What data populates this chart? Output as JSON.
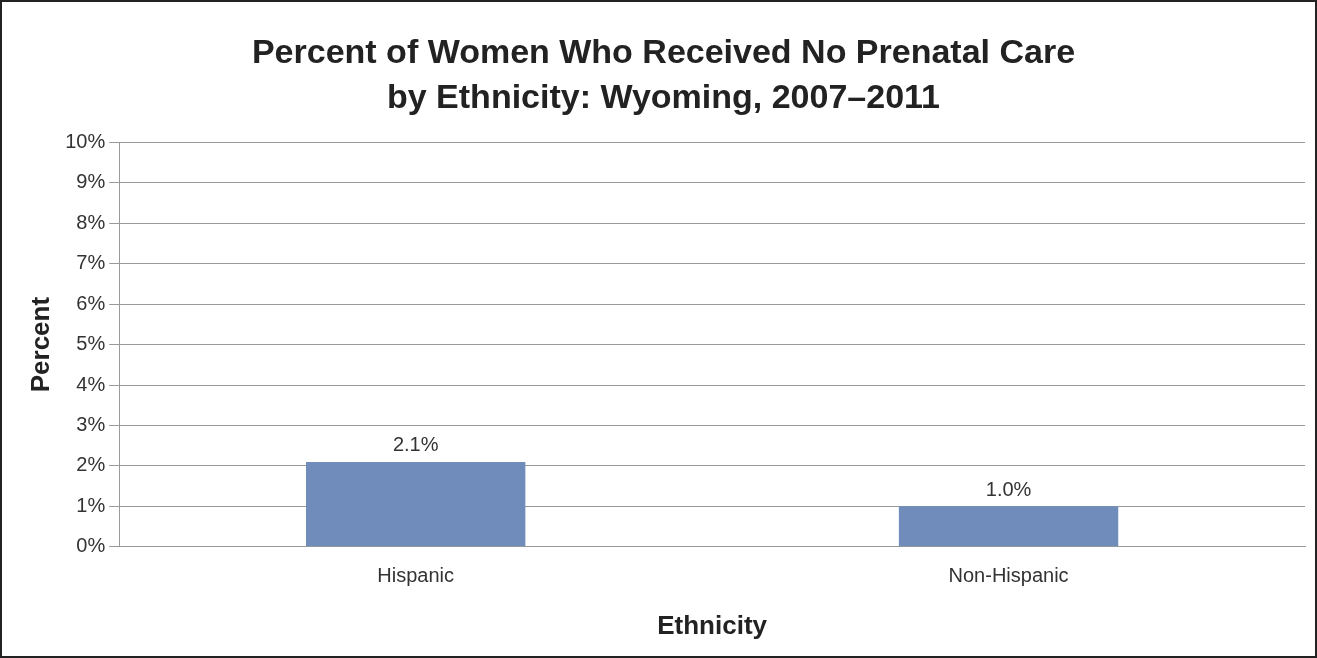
{
  "chart_data": {
    "type": "bar",
    "title": [
      "Percent of Women Who Received No Prenatal Care",
      "by Ethnicity: Wyoming, 2007–2011"
    ],
    "xlabel": "Ethnicity",
    "ylabel": "Percent",
    "categories": [
      "Hispanic",
      "Non-Hispanic"
    ],
    "values": [
      2.1,
      1.0
    ],
    "value_labels": [
      "2.1%",
      "1.0%"
    ],
    "color": "#6f8cba",
    "ylim": [
      0,
      10
    ],
    "yticks": [
      {
        "value": 0,
        "label": "0%"
      },
      {
        "value": 1,
        "label": "1%"
      },
      {
        "value": 2,
        "label": "2%"
      },
      {
        "value": 3,
        "label": "3%"
      },
      {
        "value": 4,
        "label": "4%"
      },
      {
        "value": 5,
        "label": "5%"
      },
      {
        "value": 6,
        "label": "6%"
      },
      {
        "value": 7,
        "label": "7%"
      },
      {
        "value": 8,
        "label": "8%"
      },
      {
        "value": 9,
        "label": "9%"
      },
      {
        "value": 10,
        "label": "10%"
      }
    ],
    "grid": "y",
    "legend": false
  }
}
